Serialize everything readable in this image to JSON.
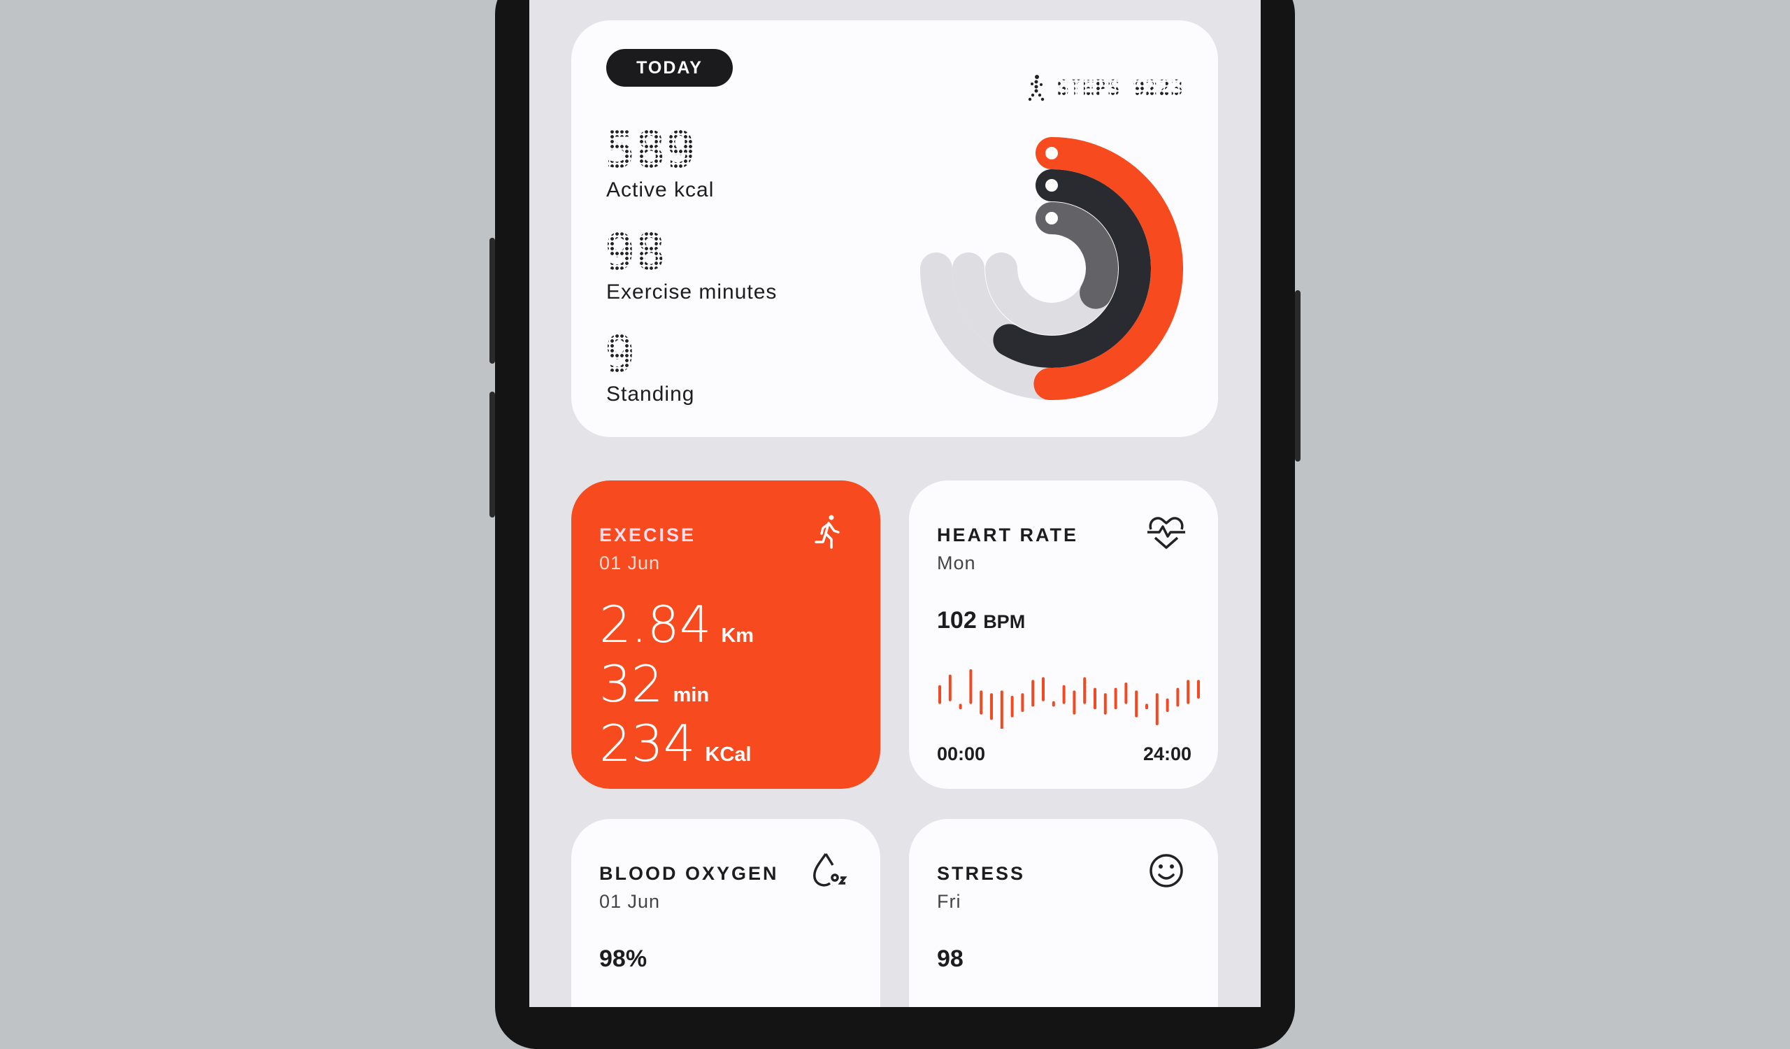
{
  "summary": {
    "today_label": "TODAY",
    "steps_label": "STEPS 9223",
    "metrics": [
      {
        "value": "589",
        "label": "Active kcal"
      },
      {
        "value": "98",
        "label": "Exercise minutes"
      },
      {
        "value": "9",
        "label": "Standing"
      }
    ],
    "rings": [
      {
        "name": "calories",
        "icon": "flame-icon",
        "color": "#f74a1f",
        "progress": 0.67
      },
      {
        "name": "exercise",
        "icon": "dumbbell-icon",
        "color": "#2a2b30",
        "progress": 0.78
      },
      {
        "name": "standing",
        "icon": "person-icon",
        "color": "#636266",
        "progress": 0.44
      }
    ],
    "track_color": "#dedde1"
  },
  "exercise": {
    "title": "EXECISE",
    "date": "01 Jun",
    "distance": "2.84",
    "distance_unit": "Km",
    "duration": "32",
    "duration_unit": "min",
    "calories": "234",
    "calories_unit": "KCal",
    "color": "#f74a1f",
    "icon": "running-icon"
  },
  "heart": {
    "title": "HEART RATE",
    "day": "Mon",
    "value": "102",
    "unit": "BPM",
    "start": "00:00",
    "end": "24:00",
    "icon": "heart-pulse-icon",
    "bars": [
      [
        4,
        -2
      ],
      [
        8,
        -1
      ],
      [
        -3,
        -4
      ],
      [
        10,
        -2
      ],
      [
        2,
        -6
      ],
      [
        1,
        -8
      ],
      [
        2,
        -12
      ],
      [
        0,
        -7
      ],
      [
        1,
        -5
      ],
      [
        6,
        -3
      ],
      [
        7,
        -1
      ],
      [
        -2,
        -3
      ],
      [
        4,
        -2
      ],
      [
        2,
        -6
      ],
      [
        7,
        -2
      ],
      [
        3,
        -4
      ],
      [
        1,
        -6
      ],
      [
        3,
        -4
      ],
      [
        5,
        -2
      ],
      [
        2,
        -7
      ],
      [
        -3,
        -4
      ],
      [
        1,
        -10
      ],
      [
        -1,
        -5
      ],
      [
        3,
        -3
      ],
      [
        6,
        -2
      ],
      [
        6,
        0
      ]
    ]
  },
  "oxygen": {
    "title": "BLOOD OXYGEN",
    "date": "01 Jun",
    "value": "98%",
    "icon": "water-drop-o2-icon"
  },
  "stress": {
    "title": "STRESS",
    "day": "Fri",
    "value": "98",
    "icon": "smiley-icon"
  }
}
